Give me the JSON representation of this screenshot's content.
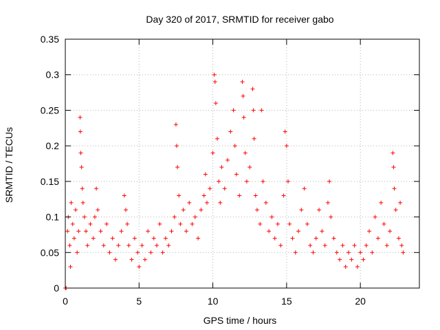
{
  "chart_data": {
    "type": "scatter",
    "title": "Day 320 of 2017, SRMTID for receiver gabo",
    "xlabel": "GPS time / hours",
    "ylabel": "SRMTID / TECUs",
    "xlim": [
      0,
      24
    ],
    "ylim": [
      0,
      0.35
    ],
    "grid": true,
    "marker": "+",
    "color": "#ff0000",
    "x_ticks": [
      {
        "value": 0,
        "label": "0"
      },
      {
        "value": 5,
        "label": "5"
      },
      {
        "value": 10,
        "label": "10"
      },
      {
        "value": 15,
        "label": "15"
      },
      {
        "value": 20,
        "label": "20"
      }
    ],
    "y_ticks": [
      {
        "value": 0,
        "label": "0"
      },
      {
        "value": 0.05,
        "label": "0.05"
      },
      {
        "value": 0.1,
        "label": "0.1"
      },
      {
        "value": 0.15,
        "label": "0.15"
      },
      {
        "value": 0.2,
        "label": "0.2"
      },
      {
        "value": 0.25,
        "label": "0.25"
      },
      {
        "value": 0.3,
        "label": "0.3"
      },
      {
        "value": 0.35,
        "label": "0.35"
      }
    ],
    "series": [
      {
        "name": "SRMTID",
        "points": [
          {
            "x": 0.0,
            "y": 0.0
          },
          {
            "x": 0.05,
            "y": 0.0
          },
          {
            "x": 0.15,
            "y": 0.08
          },
          {
            "x": 0.2,
            "y": 0.1
          },
          {
            "x": 0.3,
            "y": 0.06
          },
          {
            "x": 0.35,
            "y": 0.03
          },
          {
            "x": 0.4,
            "y": 0.12
          },
          {
            "x": 0.5,
            "y": 0.09
          },
          {
            "x": 0.6,
            "y": 0.07
          },
          {
            "x": 0.7,
            "y": 0.11
          },
          {
            "x": 0.8,
            "y": 0.05
          },
          {
            "x": 0.9,
            "y": 0.08
          },
          {
            "x": 1.0,
            "y": 0.24
          },
          {
            "x": 1.02,
            "y": 0.22
          },
          {
            "x": 1.05,
            "y": 0.19
          },
          {
            "x": 1.1,
            "y": 0.17
          },
          {
            "x": 1.15,
            "y": 0.14
          },
          {
            "x": 1.2,
            "y": 0.12
          },
          {
            "x": 1.3,
            "y": 0.1
          },
          {
            "x": 1.4,
            "y": 0.08
          },
          {
            "x": 1.5,
            "y": 0.06
          },
          {
            "x": 1.7,
            "y": 0.09
          },
          {
            "x": 1.9,
            "y": 0.07
          },
          {
            "x": 2.0,
            "y": 0.1
          },
          {
            "x": 2.1,
            "y": 0.14
          },
          {
            "x": 2.2,
            "y": 0.11
          },
          {
            "x": 2.4,
            "y": 0.08
          },
          {
            "x": 2.6,
            "y": 0.06
          },
          {
            "x": 2.8,
            "y": 0.09
          },
          {
            "x": 3.0,
            "y": 0.05
          },
          {
            "x": 3.2,
            "y": 0.07
          },
          {
            "x": 3.4,
            "y": 0.04
          },
          {
            "x": 3.6,
            "y": 0.06
          },
          {
            "x": 3.8,
            "y": 0.08
          },
          {
            "x": 4.0,
            "y": 0.13
          },
          {
            "x": 4.1,
            "y": 0.11
          },
          {
            "x": 4.2,
            "y": 0.09
          },
          {
            "x": 4.3,
            "y": 0.06
          },
          {
            "x": 4.5,
            "y": 0.04
          },
          {
            "x": 4.7,
            "y": 0.07
          },
          {
            "x": 4.9,
            "y": 0.05
          },
          {
            "x": 5.0,
            "y": 0.03
          },
          {
            "x": 5.2,
            "y": 0.06
          },
          {
            "x": 5.4,
            "y": 0.04
          },
          {
            "x": 5.6,
            "y": 0.08
          },
          {
            "x": 5.8,
            "y": 0.05
          },
          {
            "x": 6.0,
            "y": 0.07
          },
          {
            "x": 6.2,
            "y": 0.06
          },
          {
            "x": 6.4,
            "y": 0.09
          },
          {
            "x": 6.6,
            "y": 0.05
          },
          {
            "x": 6.8,
            "y": 0.07
          },
          {
            "x": 7.0,
            "y": 0.06
          },
          {
            "x": 7.2,
            "y": 0.08
          },
          {
            "x": 7.4,
            "y": 0.1
          },
          {
            "x": 7.5,
            "y": 0.23
          },
          {
            "x": 7.55,
            "y": 0.2
          },
          {
            "x": 7.6,
            "y": 0.17
          },
          {
            "x": 7.7,
            "y": 0.13
          },
          {
            "x": 7.8,
            "y": 0.09
          },
          {
            "x": 8.0,
            "y": 0.11
          },
          {
            "x": 8.2,
            "y": 0.08
          },
          {
            "x": 8.4,
            "y": 0.12
          },
          {
            "x": 8.6,
            "y": 0.09
          },
          {
            "x": 8.8,
            "y": 0.1
          },
          {
            "x": 9.0,
            "y": 0.07
          },
          {
            "x": 9.2,
            "y": 0.11
          },
          {
            "x": 9.4,
            "y": 0.13
          },
          {
            "x": 9.5,
            "y": 0.16
          },
          {
            "x": 9.6,
            "y": 0.12
          },
          {
            "x": 9.8,
            "y": 0.14
          },
          {
            "x": 10.0,
            "y": 0.19
          },
          {
            "x": 10.1,
            "y": 0.3
          },
          {
            "x": 10.15,
            "y": 0.29
          },
          {
            "x": 10.2,
            "y": 0.26
          },
          {
            "x": 10.3,
            "y": 0.21
          },
          {
            "x": 10.4,
            "y": 0.15
          },
          {
            "x": 10.5,
            "y": 0.12
          },
          {
            "x": 10.6,
            "y": 0.17
          },
          {
            "x": 10.8,
            "y": 0.14
          },
          {
            "x": 11.0,
            "y": 0.18
          },
          {
            "x": 11.2,
            "y": 0.22
          },
          {
            "x": 11.4,
            "y": 0.25
          },
          {
            "x": 11.5,
            "y": 0.2
          },
          {
            "x": 11.6,
            "y": 0.16
          },
          {
            "x": 11.8,
            "y": 0.13
          },
          {
            "x": 12.0,
            "y": 0.29
          },
          {
            "x": 12.05,
            "y": 0.27
          },
          {
            "x": 12.1,
            "y": 0.24
          },
          {
            "x": 12.2,
            "y": 0.19
          },
          {
            "x": 12.3,
            "y": 0.15
          },
          {
            "x": 12.5,
            "y": 0.17
          },
          {
            "x": 12.7,
            "y": 0.28
          },
          {
            "x": 12.75,
            "y": 0.25
          },
          {
            "x": 12.8,
            "y": 0.21
          },
          {
            "x": 12.9,
            "y": 0.13
          },
          {
            "x": 13.0,
            "y": 0.11
          },
          {
            "x": 13.2,
            "y": 0.09
          },
          {
            "x": 13.3,
            "y": 0.25
          },
          {
            "x": 13.4,
            "y": 0.15
          },
          {
            "x": 13.6,
            "y": 0.12
          },
          {
            "x": 13.8,
            "y": 0.08
          },
          {
            "x": 14.0,
            "y": 0.1
          },
          {
            "x": 14.2,
            "y": 0.07
          },
          {
            "x": 14.4,
            "y": 0.09
          },
          {
            "x": 14.6,
            "y": 0.06
          },
          {
            "x": 14.8,
            "y": 0.13
          },
          {
            "x": 14.9,
            "y": 0.22
          },
          {
            "x": 15.0,
            "y": 0.2
          },
          {
            "x": 15.1,
            "y": 0.15
          },
          {
            "x": 15.2,
            "y": 0.09
          },
          {
            "x": 15.4,
            "y": 0.07
          },
          {
            "x": 15.6,
            "y": 0.05
          },
          {
            "x": 15.8,
            "y": 0.08
          },
          {
            "x": 16.0,
            "y": 0.11
          },
          {
            "x": 16.2,
            "y": 0.14
          },
          {
            "x": 16.4,
            "y": 0.09
          },
          {
            "x": 16.6,
            "y": 0.06
          },
          {
            "x": 16.8,
            "y": 0.05
          },
          {
            "x": 17.0,
            "y": 0.07
          },
          {
            "x": 17.2,
            "y": 0.11
          },
          {
            "x": 17.4,
            "y": 0.08
          },
          {
            "x": 17.6,
            "y": 0.06
          },
          {
            "x": 17.8,
            "y": 0.12
          },
          {
            "x": 17.9,
            "y": 0.15
          },
          {
            "x": 18.0,
            "y": 0.1
          },
          {
            "x": 18.2,
            "y": 0.07
          },
          {
            "x": 18.4,
            "y": 0.05
          },
          {
            "x": 18.6,
            "y": 0.04
          },
          {
            "x": 18.8,
            "y": 0.06
          },
          {
            "x": 19.0,
            "y": 0.03
          },
          {
            "x": 19.2,
            "y": 0.05
          },
          {
            "x": 19.4,
            "y": 0.04
          },
          {
            "x": 19.6,
            "y": 0.06
          },
          {
            "x": 19.8,
            "y": 0.03
          },
          {
            "x": 20.0,
            "y": 0.05
          },
          {
            "x": 20.2,
            "y": 0.04
          },
          {
            "x": 20.4,
            "y": 0.06
          },
          {
            "x": 20.6,
            "y": 0.08
          },
          {
            "x": 20.8,
            "y": 0.05
          },
          {
            "x": 21.0,
            "y": 0.1
          },
          {
            "x": 21.2,
            "y": 0.07
          },
          {
            "x": 21.4,
            "y": 0.12
          },
          {
            "x": 21.6,
            "y": 0.09
          },
          {
            "x": 21.8,
            "y": 0.06
          },
          {
            "x": 22.0,
            "y": 0.08
          },
          {
            "x": 22.2,
            "y": 0.19
          },
          {
            "x": 22.25,
            "y": 0.17
          },
          {
            "x": 22.3,
            "y": 0.14
          },
          {
            "x": 22.4,
            "y": 0.11
          },
          {
            "x": 22.6,
            "y": 0.07
          },
          {
            "x": 22.7,
            "y": 0.12
          },
          {
            "x": 22.8,
            "y": 0.06
          },
          {
            "x": 22.9,
            "y": 0.05
          }
        ]
      }
    ]
  }
}
